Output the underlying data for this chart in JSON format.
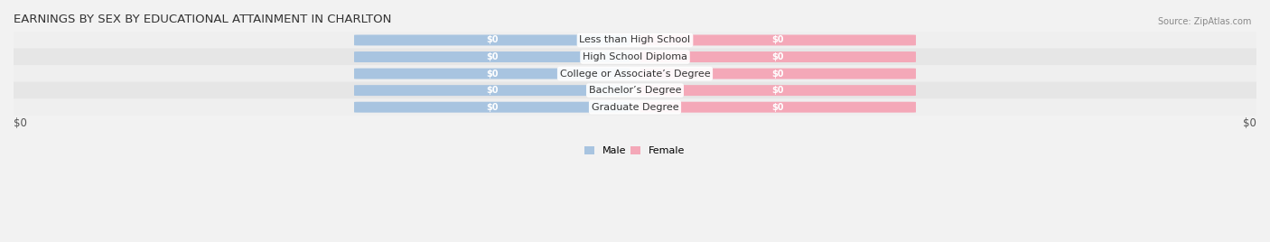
{
  "title": "EARNINGS BY SEX BY EDUCATIONAL ATTAINMENT IN CHARLTON",
  "source": "Source: ZipAtlas.com",
  "categories": [
    "Less than High School",
    "High School Diploma",
    "College or Associate’s Degree",
    "Bachelor’s Degree",
    "Graduate Degree"
  ],
  "male_values": [
    0,
    0,
    0,
    0,
    0
  ],
  "female_values": [
    0,
    0,
    0,
    0,
    0
  ],
  "male_color": "#a8c4e0",
  "female_color": "#f4a8b8",
  "male_label": "Male",
  "female_label": "Female",
  "bar_height": 0.62,
  "background_color": "#f2f2f2",
  "row_bg_even": "#efefef",
  "row_bg_odd": "#e6e6e6",
  "bar_label": "$0",
  "xlabel_left": "$0",
  "xlabel_right": "$0",
  "title_fontsize": 9.5,
  "label_fontsize": 8,
  "tick_fontsize": 8.5,
  "bar_text_fontsize": 7,
  "cat_fontsize": 8
}
